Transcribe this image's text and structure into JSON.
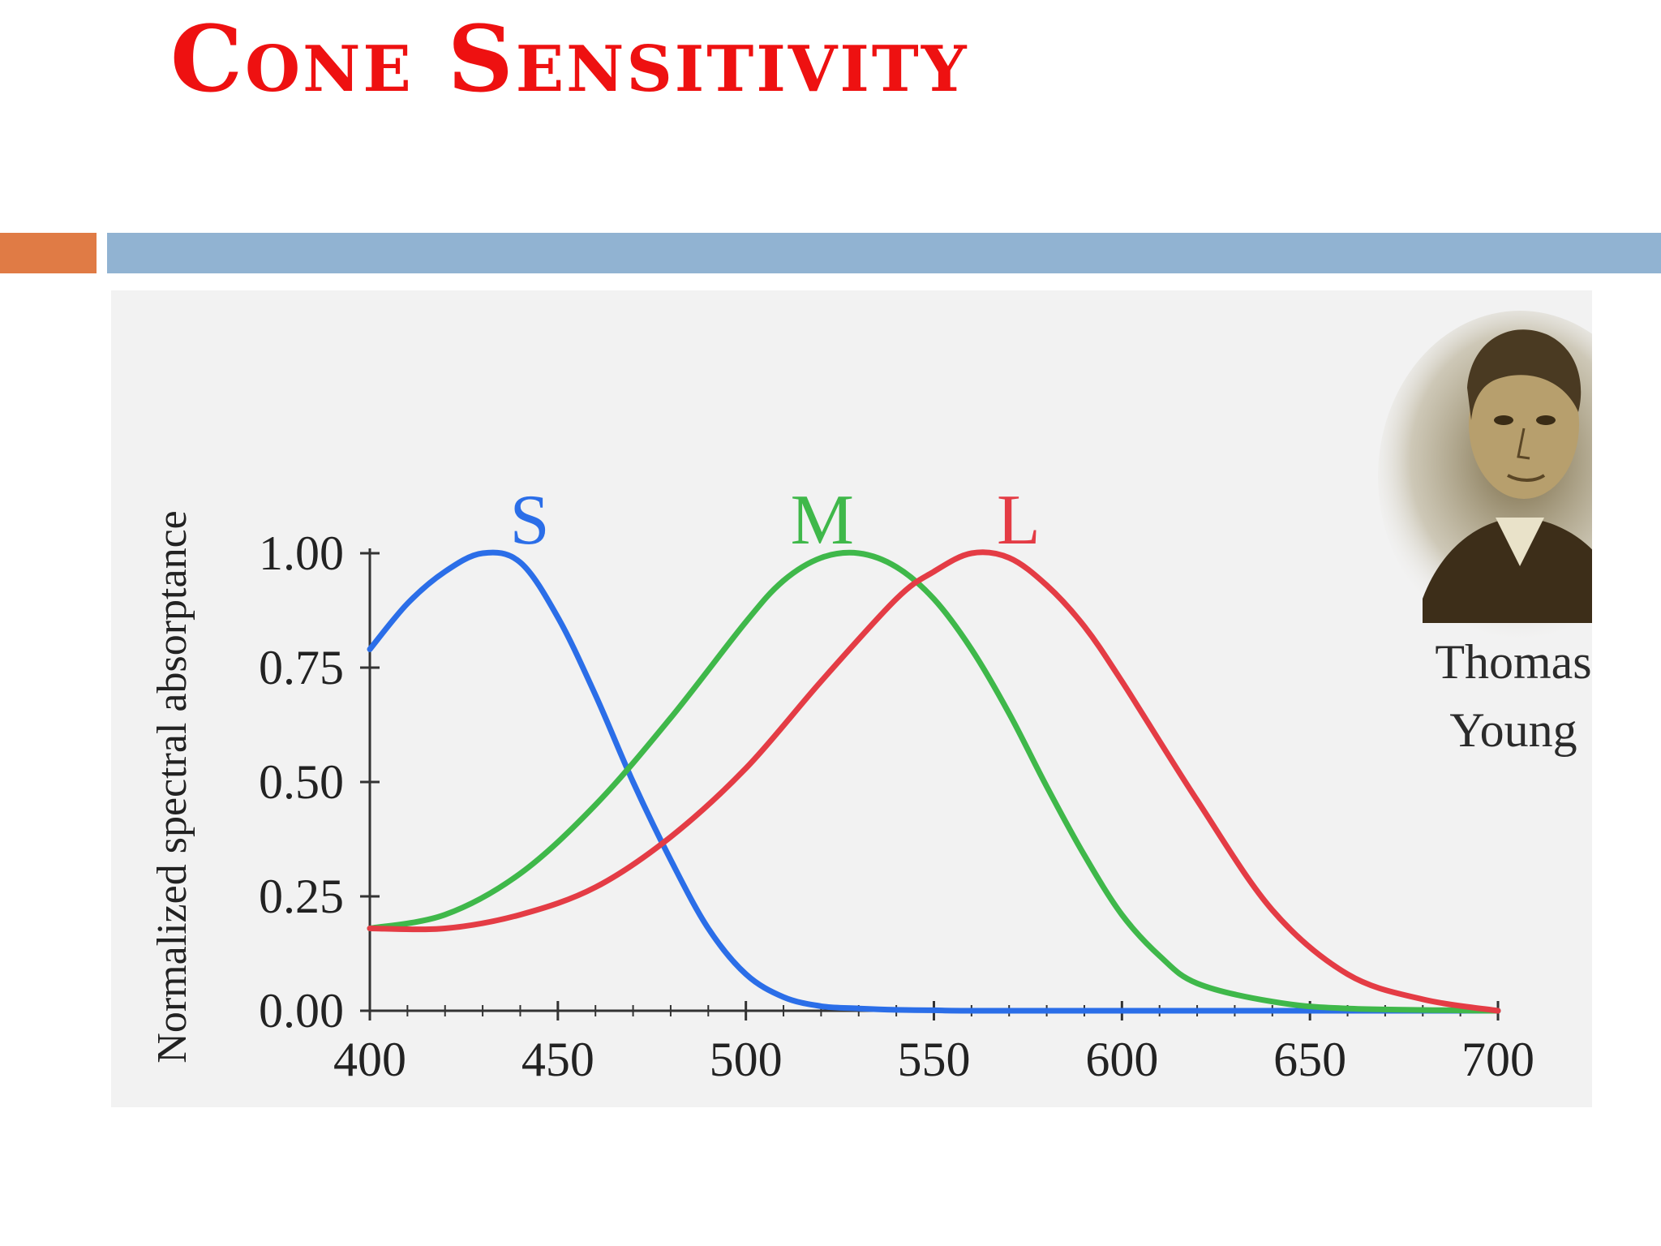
{
  "slide": {
    "title": "Cone Sensitivity",
    "title_color": "#ee1111",
    "accent_colors": {
      "orange": "#e07b45",
      "blue": "#91b3d2"
    }
  },
  "portrait": {
    "caption_line1": "Thomas",
    "caption_line2": "Young",
    "icon": "portrait-sketch"
  },
  "chart_data": {
    "type": "line",
    "title": "",
    "xlabel": "",
    "ylabel": "Normalized spectral absorptance",
    "xlim": [
      400,
      700
    ],
    "ylim": [
      0,
      1
    ],
    "grid": false,
    "legend": "labels placed near curve peaks",
    "x_ticks": [
      "400",
      "450",
      "500",
      "550",
      "600",
      "650",
      "700"
    ],
    "y_ticks": [
      "0.00",
      "0.25",
      "0.50",
      "0.75",
      "1.00"
    ],
    "series": [
      {
        "name": "S",
        "color": "#2b6ee8",
        "x": [
          400,
          410,
          420,
          430,
          440,
          450,
          460,
          470,
          480,
          490,
          500,
          510,
          520,
          530,
          540,
          550,
          560,
          600,
          650,
          700
        ],
        "values": [
          0.79,
          0.89,
          0.96,
          1.0,
          0.98,
          0.86,
          0.69,
          0.5,
          0.33,
          0.18,
          0.08,
          0.03,
          0.01,
          0.005,
          0.002,
          0.001,
          0.0,
          0.0,
          0.0,
          0.0
        ]
      },
      {
        "name": "M",
        "color": "#3fb84a",
        "x": [
          400,
          420,
          440,
          460,
          480,
          500,
          510,
          520,
          530,
          540,
          550,
          560,
          570,
          580,
          590,
          600,
          610,
          620,
          640,
          660,
          700
        ],
        "values": [
          0.18,
          0.21,
          0.3,
          0.45,
          0.64,
          0.85,
          0.94,
          0.99,
          1.0,
          0.97,
          0.9,
          0.79,
          0.65,
          0.49,
          0.34,
          0.21,
          0.12,
          0.06,
          0.02,
          0.005,
          0.0
        ]
      },
      {
        "name": "L",
        "color": "#e43c45",
        "x": [
          400,
          420,
          440,
          460,
          480,
          500,
          520,
          540,
          550,
          560,
          570,
          580,
          590,
          600,
          620,
          640,
          660,
          680,
          700
        ],
        "values": [
          0.18,
          0.18,
          0.21,
          0.27,
          0.38,
          0.53,
          0.72,
          0.9,
          0.96,
          1.0,
          0.99,
          0.93,
          0.84,
          0.72,
          0.46,
          0.22,
          0.08,
          0.025,
          0.0
        ]
      }
    ]
  }
}
